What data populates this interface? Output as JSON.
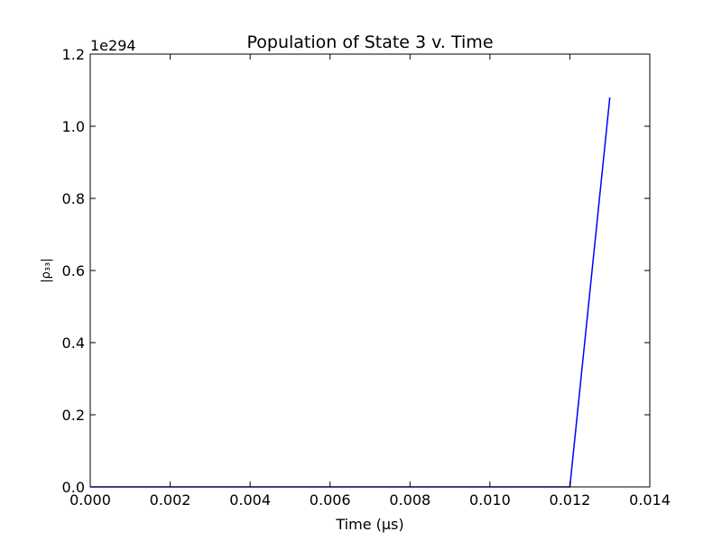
{
  "chart_data": {
    "type": "line",
    "title": "Population of State 3 v. Time",
    "xlabel": "Time (μs)",
    "ylabel": "|ρ₃₃|",
    "y_offset_label": "1e294",
    "xlim": [
      0.0,
      0.014
    ],
    "ylim": [
      0.0,
      1.2
    ],
    "x_ticks": [
      0.0,
      0.002,
      0.004,
      0.006,
      0.008,
      0.01,
      0.012,
      0.014
    ],
    "x_tick_labels": [
      "0.000",
      "0.002",
      "0.004",
      "0.006",
      "0.008",
      "0.010",
      "0.012",
      "0.014"
    ],
    "y_ticks": [
      0.0,
      0.2,
      0.4,
      0.6,
      0.8,
      1.0,
      1.2
    ],
    "y_tick_labels": [
      "0.0",
      "0.2",
      "0.4",
      "0.6",
      "0.8",
      "1.0",
      "1.2"
    ],
    "grid": false,
    "legend": "none",
    "series": [
      {
        "color": "#0000ff",
        "x": [
          0.0,
          0.001,
          0.002,
          0.003,
          0.004,
          0.005,
          0.006,
          0.007,
          0.008,
          0.009,
          0.01,
          0.011,
          0.012,
          0.013
        ],
        "y": [
          0.0,
          0.0,
          0.0,
          0.0,
          0.0,
          0.0,
          0.0,
          0.0,
          0.0,
          0.0,
          0.0,
          0.0,
          0.0,
          1.08
        ]
      }
    ]
  }
}
